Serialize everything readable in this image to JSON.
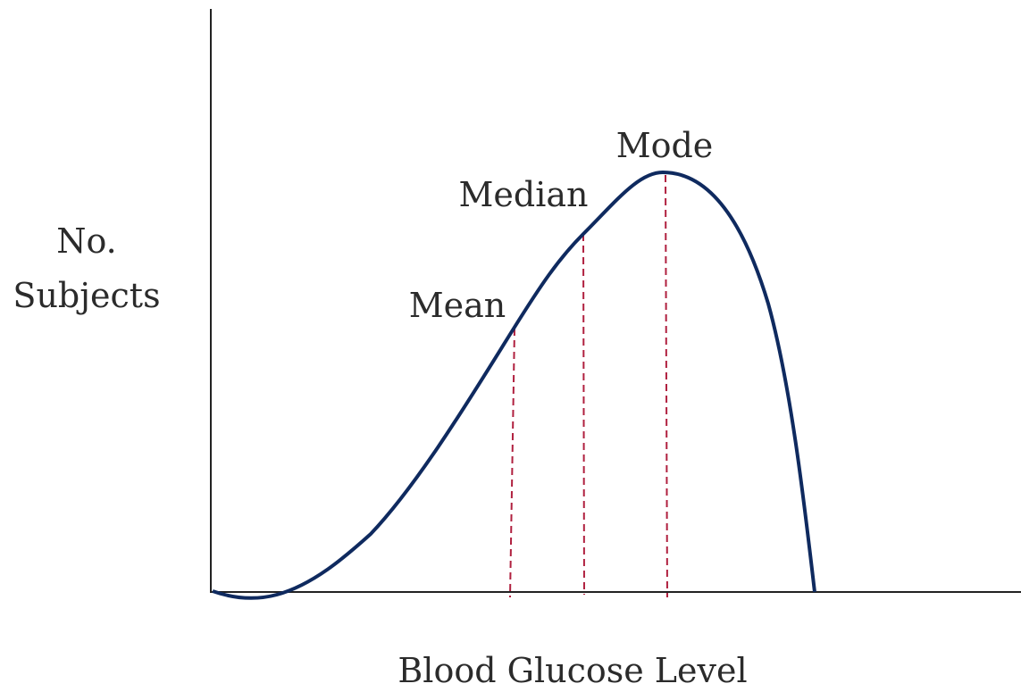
{
  "y_axis_label": {
    "lines": [
      "No.",
      "Subjects"
    ]
  },
  "x_axis_label": "Blood Glucose Level",
  "annotations": {
    "mean": "Mean",
    "median": "Median",
    "mode": "Mode"
  }
}
